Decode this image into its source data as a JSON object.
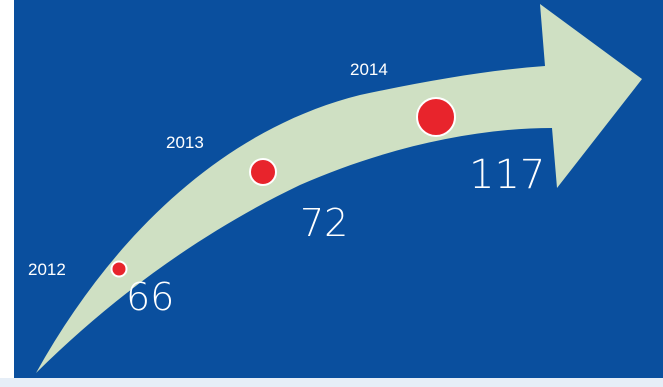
{
  "colors": {
    "background": "#0a4f9e",
    "arrow": "#cfe0c3",
    "marker": "#e8242c",
    "marker_outline": "#ffffff",
    "text": "#ffffff"
  },
  "milestones": [
    {
      "year": "2012",
      "value": "66"
    },
    {
      "year": "2013",
      "value": "72"
    },
    {
      "year": "2014",
      "value": "117"
    }
  ]
}
